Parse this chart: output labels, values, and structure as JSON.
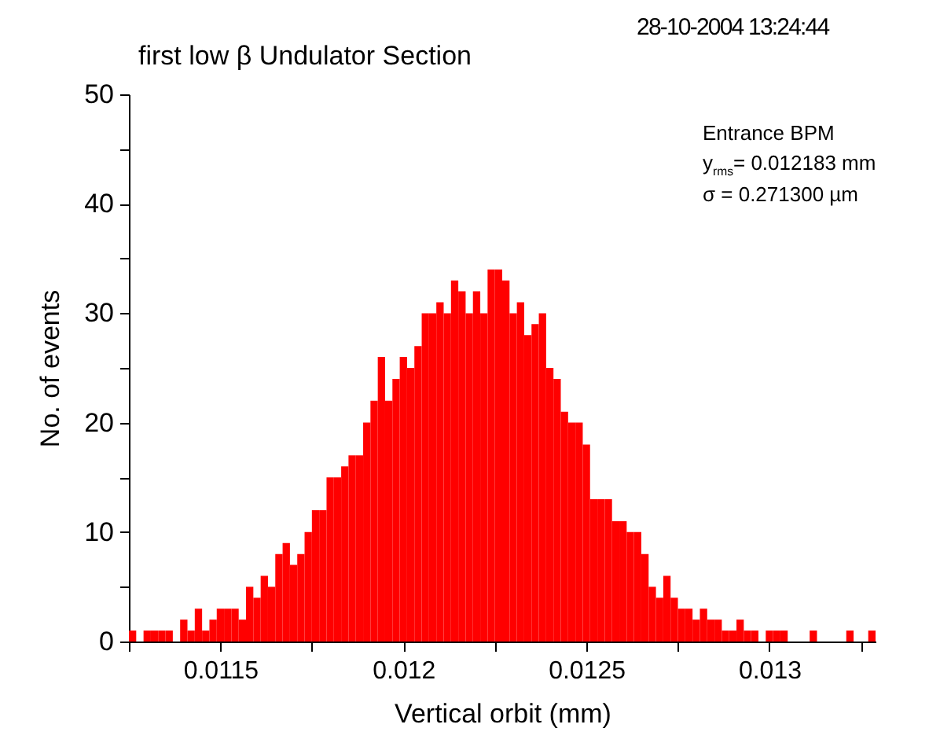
{
  "chart_data": {
    "type": "histogram",
    "title": "first low β Undulator Section",
    "xlabel": "Vertical orbit (mm)",
    "ylabel": "No. of events",
    "color": "#ff0000",
    "annotations": [
      "28-10-2004 13:24:44",
      "Entrance BPM",
      "y$_{rms}$= 0.012183 mm",
      "σ   = 0.271300 µm"
    ],
    "xlim": [
      0.01125,
      0.01329
    ],
    "ylim": [
      0,
      50
    ],
    "xticks": [
      {
        "value": 0.01125,
        "label": null
      },
      0.0115,
      {
        "value": 0.01175,
        "label": null
      },
      0.012,
      {
        "value": 0.01225,
        "label": null
      },
      0.0125,
      {
        "value": 0.01275,
        "label": null
      },
      0.013,
      {
        "value": 0.01325,
        "label": null
      }
    ],
    "yticks": [
      0,
      {
        "value": 5,
        "label": null
      },
      10,
      {
        "value": 15,
        "label": null
      },
      20,
      {
        "value": 25,
        "label": null
      },
      30,
      {
        "value": 35,
        "label": null
      },
      40,
      {
        "value": 45,
        "label": null
      },
      50
    ],
    "bins": [
      0.01125,
      0.01127,
      0.01129,
      0.01131,
      0.01133,
      0.01135,
      0.01137,
      0.01139,
      0.01141,
      0.01143,
      0.01145,
      0.01147,
      0.01149,
      0.01151,
      0.01153,
      0.01155,
      0.01157,
      0.01159,
      0.01161,
      0.01163,
      0.01165,
      0.01167,
      0.01169,
      0.01171,
      0.01173,
      0.01175,
      0.01177,
      0.01179,
      0.01181,
      0.01183,
      0.01185,
      0.01187,
      0.01189,
      0.01191,
      0.01193,
      0.01195,
      0.01197,
      0.01199,
      0.01201,
      0.01203,
      0.01205,
      0.01207,
      0.01209,
      0.01211,
      0.01213,
      0.01215,
      0.01217,
      0.01219,
      0.01221,
      0.01223,
      0.01225,
      0.01227,
      0.01229,
      0.01231,
      0.01233,
      0.01235,
      0.01237,
      0.01239,
      0.01241,
      0.01243,
      0.01245,
      0.01247,
      0.01249,
      0.01251,
      0.01253,
      0.01255,
      0.01257,
      0.01259,
      0.01261,
      0.01263,
      0.01265,
      0.01267,
      0.01269,
      0.01271,
      0.01273,
      0.01275,
      0.01277,
      0.01279,
      0.01281,
      0.01283,
      0.01285,
      0.01287,
      0.01289,
      0.01291,
      0.01293,
      0.01295,
      0.01297,
      0.01299,
      0.01301,
      0.01303,
      0.01305,
      0.01307,
      0.01309,
      0.01311,
      0.01313,
      0.01315,
      0.01317,
      0.01319,
      0.01321,
      0.01323,
      0.01325,
      0.01327,
      0.01329
    ],
    "values": [
      1,
      0,
      1,
      1,
      1,
      1,
      0,
      2,
      1,
      3,
      1,
      2,
      3,
      3,
      3,
      2,
      5,
      4,
      6,
      5,
      8,
      9,
      7,
      8,
      10,
      12,
      12,
      15,
      15,
      16,
      17,
      17,
      20,
      22,
      26,
      22,
      24,
      26,
      25,
      27,
      30,
      30,
      31,
      30,
      33,
      32,
      30,
      32,
      30,
      34,
      34,
      33,
      30,
      31,
      28,
      29,
      30,
      25,
      24,
      21,
      20,
      20,
      18,
      13,
      13,
      13,
      11,
      11,
      10,
      10,
      8,
      5,
      4,
      6,
      4,
      3,
      3,
      2,
      3,
      2,
      2,
      1,
      1,
      2,
      1,
      1,
      0,
      1,
      1,
      1,
      0,
      0,
      0,
      1,
      0,
      0,
      0,
      0,
      1,
      0,
      0,
      1
    ]
  }
}
